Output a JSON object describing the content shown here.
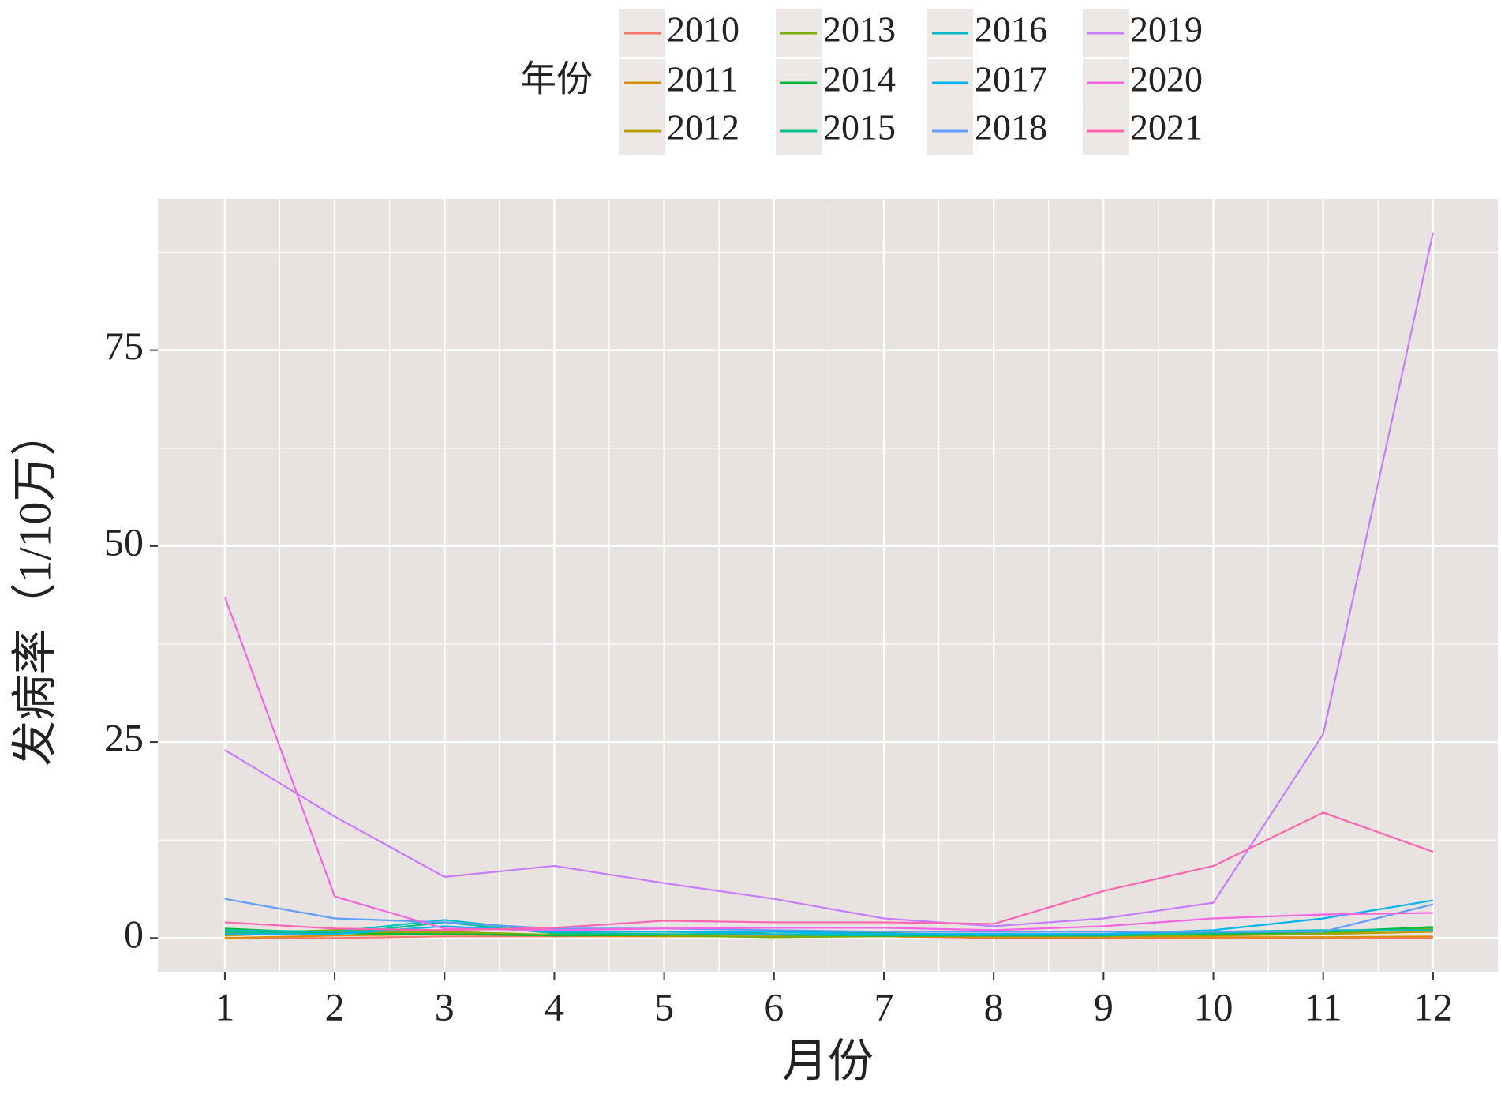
{
  "chart_data": {
    "type": "line",
    "x_label": "月份",
    "y_label": "发病率（1/10万）",
    "legend_title": "年份",
    "x": [
      1,
      2,
      3,
      4,
      5,
      6,
      7,
      8,
      9,
      10,
      11,
      12
    ],
    "xlim": [
      0.39,
      12.59
    ],
    "xticks": [
      1,
      2,
      3,
      4,
      5,
      6,
      7,
      8,
      9,
      10,
      11,
      12
    ],
    "ylim": [
      -4.3,
      94.3
    ],
    "yticks": [
      0,
      25,
      50,
      75
    ],
    "grid": true,
    "legend": "top",
    "series": [
      {
        "name": "2010",
        "color": "#F8766D",
        "values": [
          0,
          0,
          0.2,
          0.2,
          0.2,
          0.2,
          0.2,
          0,
          0,
          0,
          0,
          0
        ]
      },
      {
        "name": "2011",
        "color": "#DE8C00",
        "values": [
          0,
          0.3,
          0.5,
          0.3,
          0.2,
          0.2,
          0.2,
          0.1,
          0.1,
          0.1,
          0.1,
          0.2
        ]
      },
      {
        "name": "2012",
        "color": "#B79F00",
        "values": [
          0.3,
          0.8,
          0.6,
          0.3,
          0.3,
          0.1,
          0.3,
          0.2,
          0.2,
          0.3,
          0.5,
          0.8
        ]
      },
      {
        "name": "2013",
        "color": "#7CAE00",
        "values": [
          0.6,
          1.0,
          0.8,
          0.4,
          0.3,
          0.1,
          0.2,
          0.3,
          0.3,
          0.4,
          0.6,
          1.2
        ]
      },
      {
        "name": "2014",
        "color": "#00BA38",
        "values": [
          1.2,
          0.6,
          0.5,
          0.3,
          0.4,
          0.8,
          0.6,
          0.4,
          0.4,
          0.5,
          0.8,
          1.4
        ]
      },
      {
        "name": "2015",
        "color": "#00C08B",
        "values": [
          0.8,
          0.5,
          2.0,
          0.6,
          0.5,
          0.4,
          0.3,
          0.3,
          0.3,
          0.6,
          0.9,
          1.0
        ]
      },
      {
        "name": "2016",
        "color": "#00BFC4",
        "values": [
          1.0,
          0.8,
          2.3,
          0.8,
          0.8,
          0.5,
          0.5,
          0.5,
          0.5,
          0.8,
          1.0,
          1.0
        ]
      },
      {
        "name": "2017",
        "color": "#00B4F0",
        "values": [
          0.5,
          0.5,
          1.5,
          0.8,
          0.8,
          0.8,
          0.5,
          0.5,
          0.5,
          1.0,
          2.5,
          4.8
        ]
      },
      {
        "name": "2018",
        "color": "#619CFF",
        "values": [
          5.0,
          2.5,
          2.0,
          1.2,
          1.2,
          1.0,
          0.8,
          0.8,
          0.8,
          0.8,
          0.8,
          4.3
        ]
      },
      {
        "name": "2019",
        "color": "#C77CFF",
        "values": [
          24,
          15.5,
          7.8,
          9.2,
          7,
          5,
          2.5,
          1.5,
          2.5,
          4.5,
          26,
          90
        ]
      },
      {
        "name": "2020",
        "color": "#F564E3",
        "values": [
          43.5,
          5.3,
          1.2,
          1.0,
          1.2,
          1.3,
          1.3,
          1.0,
          1.5,
          2.5,
          3.0,
          3.2
        ]
      },
      {
        "name": "2021",
        "color": "#FF64B0",
        "values": [
          2.0,
          1.2,
          1.0,
          1.3,
          2.2,
          2.0,
          2.0,
          1.8,
          6.0,
          9.2,
          16.0,
          11.0
        ]
      }
    ]
  }
}
